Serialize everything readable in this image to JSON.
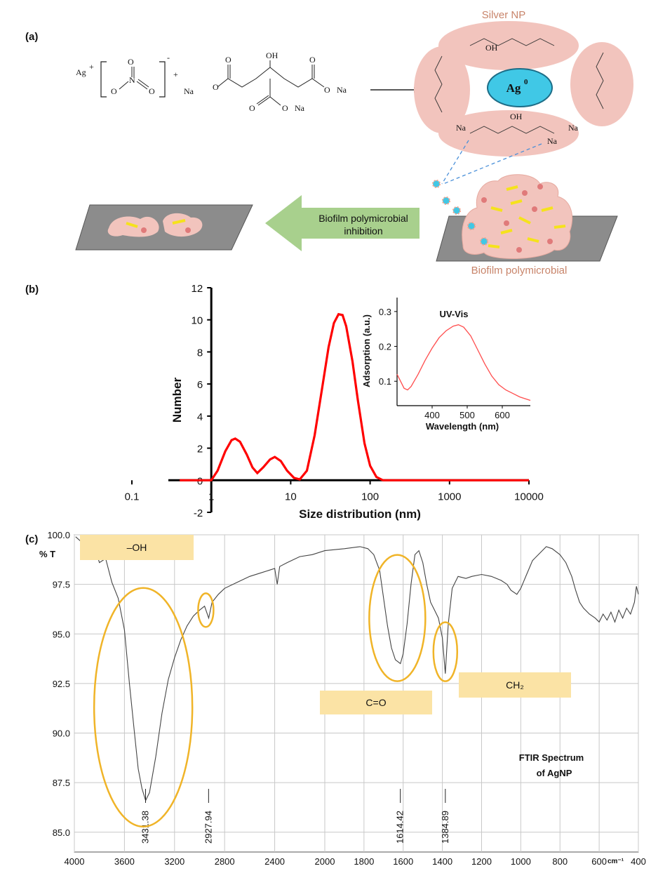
{
  "panel_labels": {
    "a": "(a)",
    "b": "(b)",
    "c": "(c)"
  },
  "panel_a": {
    "silver_np_label": "Silver NP",
    "core_label": "Ag",
    "core_superscript": "0",
    "reagent_ag": "Ag",
    "reagent_ag_charge": "+",
    "reagent_nitrate_charge": "-",
    "reagent_plus": "+",
    "citrate_na_left": "Na",
    "citrate_oh": "OH",
    "citrate_o_na_right": "O",
    "citrate_o_na_bottom": "O",
    "na": "Na",
    "arrow_label_line1": "Biofilm polymicrobial",
    "arrow_label_line2": "inhibition",
    "biofilm_label": "Biofilm polymicrobial",
    "colors": {
      "salmon": "#f2c4bd",
      "cyan": "#3fc8e4",
      "yellow": "#f5e21c",
      "arrow_green": "#a8d08d",
      "substrate": "#8c8c8c"
    }
  },
  "chart_data": [
    {
      "type": "line",
      "panel": "b",
      "xlabel": "Size distribution (nm)",
      "ylabel": "Number",
      "xscale": "log",
      "xlim": [
        0.1,
        10000
      ],
      "ylim": [
        -2,
        12
      ],
      "x_ticks": [
        "0.1",
        "1",
        "10",
        "100",
        "1000",
        "10000"
      ],
      "y_ticks": [
        "-2",
        "0",
        "2",
        "4",
        "6",
        "8",
        "10",
        "12"
      ],
      "series": [
        {
          "color": "#ff0000",
          "points": [
            [
              0.4,
              0
            ],
            [
              1.0,
              0
            ],
            [
              1.2,
              0.6
            ],
            [
              1.5,
              1.8
            ],
            [
              1.8,
              2.5
            ],
            [
              2.0,
              2.6
            ],
            [
              2.3,
              2.4
            ],
            [
              2.8,
              1.6
            ],
            [
              3.3,
              0.8
            ],
            [
              3.8,
              0.45
            ],
            [
              4.5,
              0.8
            ],
            [
              5.5,
              1.3
            ],
            [
              6.3,
              1.45
            ],
            [
              7.5,
              1.2
            ],
            [
              9,
              0.6
            ],
            [
              11,
              0.15
            ],
            [
              13,
              0.05
            ],
            [
              16,
              0.6
            ],
            [
              20,
              2.8
            ],
            [
              25,
              5.8
            ],
            [
              30,
              8.3
            ],
            [
              35,
              9.8
            ],
            [
              40,
              10.35
            ],
            [
              45,
              10.3
            ],
            [
              50,
              9.6
            ],
            [
              60,
              7.4
            ],
            [
              70,
              5.0
            ],
            [
              85,
              2.3
            ],
            [
              100,
              0.9
            ],
            [
              120,
              0.2
            ],
            [
              145,
              0
            ],
            [
              10000,
              0
            ]
          ]
        }
      ],
      "inset": {
        "type": "line",
        "title": "UV-Vis",
        "xlabel": "Wavelength (nm)",
        "ylabel": "Adsorption (a.u.)",
        "xlim": [
          300,
          680
        ],
        "ylim": [
          0.03,
          0.34
        ],
        "x_ticks": [
          "400",
          "500",
          "600"
        ],
        "y_ticks": [
          "0.1",
          "0.2",
          "0.3"
        ],
        "series": [
          {
            "color": "#ff4d4d",
            "points": [
              [
                300,
                0.12
              ],
              [
                310,
                0.1
              ],
              [
                320,
                0.08
              ],
              [
                330,
                0.075
              ],
              [
                340,
                0.085
              ],
              [
                360,
                0.12
              ],
              [
                380,
                0.16
              ],
              [
                400,
                0.195
              ],
              [
                420,
                0.225
              ],
              [
                440,
                0.245
              ],
              [
                460,
                0.258
              ],
              [
                475,
                0.262
              ],
              [
                490,
                0.255
              ],
              [
                510,
                0.23
              ],
              [
                530,
                0.19
              ],
              [
                550,
                0.15
              ],
              [
                570,
                0.115
              ],
              [
                590,
                0.09
              ],
              [
                610,
                0.075
              ],
              [
                630,
                0.065
              ],
              [
                650,
                0.055
              ],
              [
                680,
                0.045
              ]
            ]
          }
        ]
      }
    },
    {
      "type": "line",
      "panel": "c",
      "title": "FTIR Spectrum\nof AgNP",
      "ylabel": "% T",
      "x_unit": "cm⁻¹",
      "xlim": [
        4000,
        400
      ],
      "ylim": [
        84,
        100
      ],
      "x_ticks": [
        "4000",
        "3600",
        "3200",
        "2800",
        "2400",
        "2000",
        "1800",
        "1600",
        "1400",
        "1200",
        "1000",
        "800",
        "600",
        "400"
      ],
      "y_ticks": [
        "100.0",
        "97.5",
        "95.0",
        "92.5",
        "90.0",
        "87.5",
        "85.0"
      ],
      "peaks": [
        "3431.38",
        "2927.94",
        "1614.42",
        "1384.89"
      ],
      "annotations": [
        "–OH",
        "C=O",
        "CH₂"
      ],
      "series": [
        {
          "color": "#444444",
          "points": [
            [
              3990,
              99.9
            ],
            [
              3900,
              99.4
            ],
            [
              3850,
              99.6
            ],
            [
              3800,
              98.6
            ],
            [
              3750,
              98.8
            ],
            [
              3700,
              97.6
            ],
            [
              3650,
              96.8
            ],
            [
              3600,
              95.2
            ],
            [
              3560,
              92.5
            ],
            [
              3520,
              90.0
            ],
            [
              3490,
              88.2
            ],
            [
              3460,
              87.2
            ],
            [
              3431,
              86.6
            ],
            [
              3400,
              87.0
            ],
            [
              3350,
              88.8
            ],
            [
              3300,
              91.0
            ],
            [
              3250,
              92.7
            ],
            [
              3200,
              93.8
            ],
            [
              3150,
              94.7
            ],
            [
              3100,
              95.4
            ],
            [
              3050,
              95.9
            ],
            [
              3000,
              96.2
            ],
            [
              2960,
              96.4
            ],
            [
              2927,
              95.8
            ],
            [
              2900,
              96.6
            ],
            [
              2850,
              97.0
            ],
            [
              2800,
              97.3
            ],
            [
              2700,
              97.6
            ],
            [
              2600,
              97.9
            ],
            [
              2500,
              98.1
            ],
            [
              2400,
              98.3
            ],
            [
              2380,
              97.5
            ],
            [
              2360,
              98.4
            ],
            [
              2300,
              98.6
            ],
            [
              2200,
              98.9
            ],
            [
              2100,
              99.0
            ],
            [
              2000,
              99.2
            ],
            [
              1900,
              99.3
            ],
            [
              1820,
              99.4
            ],
            [
              1780,
              99.3
            ],
            [
              1750,
              99.0
            ],
            [
              1720,
              98.2
            ],
            [
              1700,
              96.8
            ],
            [
              1680,
              95.4
            ],
            [
              1660,
              94.3
            ],
            [
              1640,
              93.7
            ],
            [
              1614,
              93.5
            ],
            [
              1600,
              94.0
            ],
            [
              1580,
              95.5
            ],
            [
              1560,
              97.5
            ],
            [
              1540,
              99.0
            ],
            [
              1520,
              99.2
            ],
            [
              1500,
              98.6
            ],
            [
              1480,
              97.5
            ],
            [
              1460,
              96.6
            ],
            [
              1440,
              96.2
            ],
            [
              1420,
              95.8
            ],
            [
              1400,
              94.8
            ],
            [
              1385,
              93.0
            ],
            [
              1370,
              95.5
            ],
            [
              1350,
              97.3
            ],
            [
              1320,
              97.9
            ],
            [
              1280,
              97.8
            ],
            [
              1250,
              97.9
            ],
            [
              1200,
              98.0
            ],
            [
              1150,
              97.9
            ],
            [
              1100,
              97.7
            ],
            [
              1070,
              97.5
            ],
            [
              1050,
              97.2
            ],
            [
              1020,
              97.0
            ],
            [
              1000,
              97.3
            ],
            [
              970,
              98.0
            ],
            [
              940,
              98.7
            ],
            [
              900,
              99.1
            ],
            [
              870,
              99.4
            ],
            [
              840,
              99.3
            ],
            [
              800,
              99.0
            ],
            [
              770,
              98.6
            ],
            [
              740,
              97.9
            ],
            [
              720,
              97.2
            ],
            [
              700,
              96.6
            ],
            [
              680,
              96.3
            ],
            [
              650,
              96.0
            ],
            [
              620,
              95.8
            ],
            [
              600,
              95.6
            ],
            [
              580,
              96.0
            ],
            [
              560,
              95.7
            ],
            [
              540,
              96.1
            ],
            [
              520,
              95.6
            ],
            [
              500,
              96.2
            ],
            [
              480,
              95.8
            ],
            [
              460,
              96.3
            ],
            [
              440,
              96.0
            ],
            [
              420,
              96.6
            ],
            [
              410,
              97.4
            ],
            [
              400,
              97.0
            ]
          ]
        }
      ]
    }
  ]
}
